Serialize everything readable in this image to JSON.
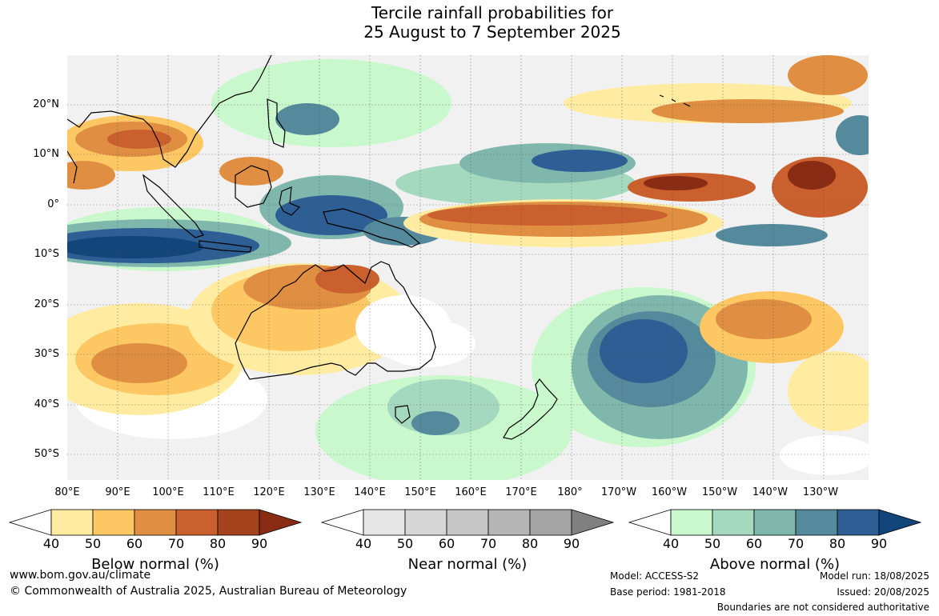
{
  "title": {
    "line1": "Tercile rainfall probabilities for",
    "line2": "25 August to 7 September 2025"
  },
  "map": {
    "latitude_labels": [
      "20°N",
      "10°N",
      "0°",
      "10°S",
      "20°S",
      "30°S",
      "40°S",
      "50°S"
    ],
    "longitude_labels": [
      "80°E",
      "90°E",
      "100°E",
      "110°E",
      "120°E",
      "130°E",
      "140°E",
      "150°E",
      "160°E",
      "170°E",
      "180°",
      "170°W",
      "160°W",
      "150°W",
      "140°W",
      "130°W"
    ]
  },
  "legend": {
    "below": {
      "title": "Below normal (%)",
      "ticks": [
        "40",
        "50",
        "60",
        "70",
        "80",
        "90"
      ],
      "colors": [
        "#ffffff",
        "#ffeca0",
        "#fdc763",
        "#e08f42",
        "#c9602d",
        "#a6431f",
        "#8a2b13"
      ]
    },
    "near": {
      "title": "Near normal (%)",
      "ticks": [
        "40",
        "50",
        "60",
        "70",
        "80",
        "90"
      ],
      "colors": [
        "#ffffff",
        "#e6e6e6",
        "#d6d6d6",
        "#c6c6c6",
        "#b5b5b5",
        "#a4a4a4",
        "#808080"
      ]
    },
    "above": {
      "title": "Above normal (%)",
      "ticks": [
        "40",
        "50",
        "60",
        "70",
        "80",
        "90"
      ],
      "colors": [
        "#ffffff",
        "#c9f8cc",
        "#a4d9c0",
        "#7fb7ad",
        "#55899c",
        "#2e5f94",
        "#12467a"
      ]
    }
  },
  "footer": {
    "website": "www.bom.gov.au/climate",
    "copyright": "© Commonwealth of Australia 2025, Australian Bureau of Meteorology",
    "model": "Model: ACCESS-S2",
    "base_period": "Base period: 1981-2018",
    "model_run": "Model run: 18/08/2025",
    "issued": "Issued: 20/08/2025",
    "disclaimer": "Boundaries are not considered authoritative"
  }
}
